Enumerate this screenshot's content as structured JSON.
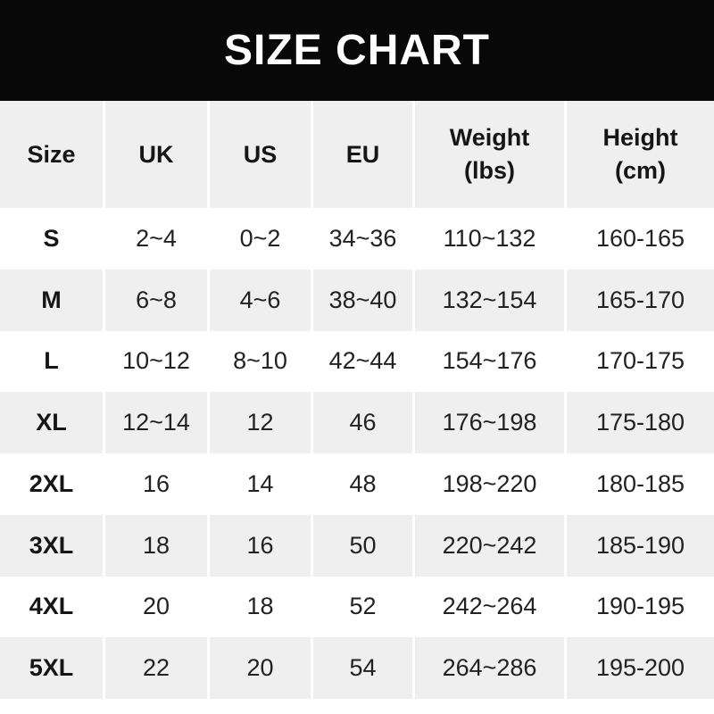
{
  "banner": {
    "title": "SIZE CHART"
  },
  "table": {
    "columns": [
      {
        "label": "Size"
      },
      {
        "label": "UK"
      },
      {
        "label": "US"
      },
      {
        "label": "EU"
      },
      {
        "label": "Weight",
        "sub": "(lbs)"
      },
      {
        "label": "Height",
        "sub": "(cm)"
      }
    ],
    "rows": [
      {
        "size": "S",
        "uk": "2~4",
        "us": "0~2",
        "eu": "34~36",
        "weight": "110~132",
        "height": "160-165"
      },
      {
        "size": "M",
        "uk": "6~8",
        "us": "4~6",
        "eu": "38~40",
        "weight": "132~154",
        "height": "165-170"
      },
      {
        "size": "L",
        "uk": "10~12",
        "us": "8~10",
        "eu": "42~44",
        "weight": "154~176",
        "height": "170-175"
      },
      {
        "size": "XL",
        "uk": "12~14",
        "us": "12",
        "eu": "46",
        "weight": "176~198",
        "height": "175-180"
      },
      {
        "size": "2XL",
        "uk": "16",
        "us": "14",
        "eu": "48",
        "weight": "198~220",
        "height": "180-185"
      },
      {
        "size": "3XL",
        "uk": "18",
        "us": "16",
        "eu": "50",
        "weight": "220~242",
        "height": "185-190"
      },
      {
        "size": "4XL",
        "uk": "20",
        "us": "18",
        "eu": "52",
        "weight": "242~264",
        "height": "190-195"
      },
      {
        "size": "5XL",
        "uk": "22",
        "us": "20",
        "eu": "54",
        "weight": "264~286",
        "height": "195-200"
      }
    ]
  },
  "colors": {
    "banner_bg": "#080808",
    "banner_text": "#ffffff",
    "row_alt_bg": "#f0eff0",
    "row_base_bg": "#ffffff",
    "text_dark": "#161616",
    "text_data": "#222222",
    "divider": "#ffffff"
  }
}
